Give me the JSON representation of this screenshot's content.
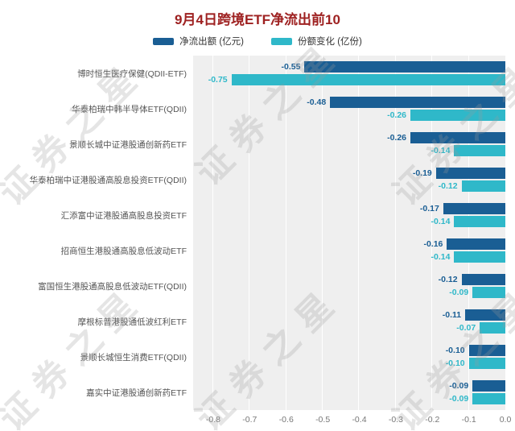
{
  "title": "9月4日跨境ETF净流出前10",
  "watermark_text": "证券之星",
  "legend": {
    "items": [
      {
        "label": "净流出额 (亿元)",
        "color": "#1a5e94"
      },
      {
        "label": "份额变化 (亿份)",
        "color": "#2fb8c9"
      }
    ]
  },
  "chart_data": {
    "type": "bar",
    "orientation": "horizontal",
    "title": "9月4日跨境ETF净流出前10",
    "categories": [
      "博时恒生医疗保健(QDII-ETF)",
      "华泰柏瑞中韩半导体ETF(QDII)",
      "景顺长城中证港股通创新药ETF",
      "华泰柏瑞中证港股通高股息投资ETF(QDII)",
      "汇添富中证港股通高股息投资ETF",
      "招商恒生港股通高股息低波动ETF",
      "富国恒生港股通高股息低波动ETF(QDII)",
      "摩根标普港股通低波红利ETF",
      "景顺长城恒生消费ETF(QDII)",
      "嘉实中证港股通创新药ETF"
    ],
    "series": [
      {
        "name": "净流出额 (亿元)",
        "color": "#1a5e94",
        "values": [
          "-0.55",
          "-0.48",
          "-0.26",
          "-0.19",
          "-0.17",
          "-0.16",
          "-0.12",
          "-0.11",
          "-0.10",
          "-0.09"
        ]
      },
      {
        "name": "份额变化 (亿份)",
        "color": "#2fb8c9",
        "values": [
          "-0.75",
          "-0.26",
          "-0.14",
          "-0.12",
          "-0.14",
          "-0.14",
          "-0.09",
          "-0.07",
          "-0.10",
          "-0.09"
        ]
      }
    ],
    "xlim": [
      -0.855,
      0
    ],
    "x_ticks": [
      "-0.8",
      "-0.7",
      "-0.6",
      "-0.5",
      "-0.4",
      "-0.3",
      "-0.2",
      "-0.1",
      "0.0"
    ],
    "grid": true,
    "legend_position": "top",
    "plot_background": "#efefef"
  }
}
